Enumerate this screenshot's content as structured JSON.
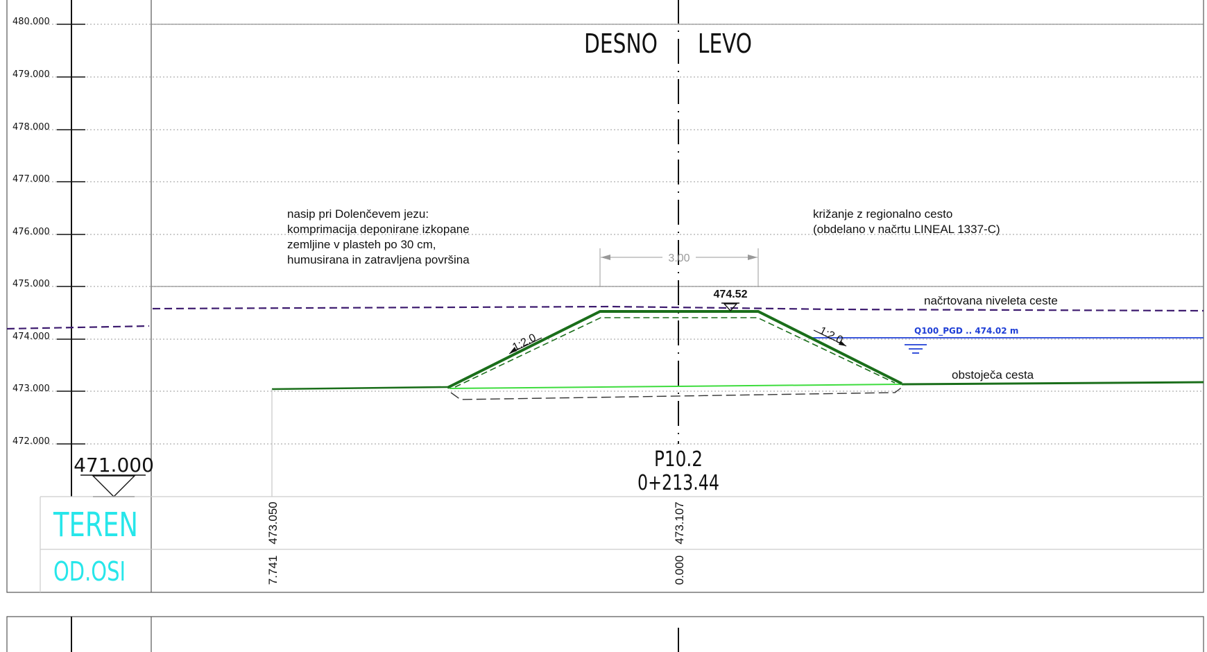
{
  "diagram": {
    "elevations": [
      "480.000",
      "479.000",
      "478.000",
      "477.000",
      "476.000",
      "475.000",
      "474.000",
      "473.000",
      "472.000"
    ],
    "datum": "471.000",
    "side_right": "DESNO",
    "side_left": "LEVO",
    "profile_id": "P10.2",
    "chainage": "0+213.44",
    "width_dim": "3.00",
    "crest_elev": "474.52",
    "slope_left": "1:2.0",
    "slope_right": "1:2.0",
    "note_embankment": [
      "nasip pri Dolenčevem jezu:",
      "komprimacija deponirane izkopane",
      "zemljine v plasteh po 30 cm,",
      "humusirana in zatravljena površina"
    ],
    "note_crossing": [
      "križanje z regionalno cesto",
      "(obdelano v načrtu LINEAL 1337-C)"
    ],
    "label_road_design": "načrtovana niveleta ceste",
    "label_q100": "Q100_PGD .. 474.02 m",
    "label_existing_road": "obstoječa cesta",
    "row_label_teren": "TEREN",
    "row_label_odosi": "OD.OSI",
    "teren_values": [
      "473.050",
      "473.107"
    ],
    "odosi_values": [
      "7.741",
      "0.000"
    ]
  },
  "colors": {
    "grid": "#9a9a9a",
    "embankment": "#1a6e1a",
    "existing_light": "#3ddc3d",
    "road_design": "#3c1a6e",
    "q100": "#1f3fd6",
    "row_labels": "#27e6ea"
  }
}
